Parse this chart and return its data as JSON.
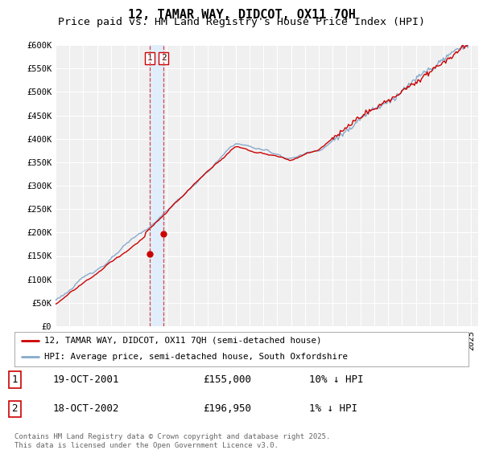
{
  "title": "12, TAMAR WAY, DIDCOT, OX11 7QH",
  "subtitle": "Price paid vs. HM Land Registry's House Price Index (HPI)",
  "ylabel_ticks": [
    "£0",
    "£50K",
    "£100K",
    "£150K",
    "£200K",
    "£250K",
    "£300K",
    "£350K",
    "£400K",
    "£450K",
    "£500K",
    "£550K",
    "£600K"
  ],
  "ylim": [
    0,
    600000
  ],
  "xlim_start": 1995.0,
  "xlim_end": 2025.5,
  "purchase1_x": 2001.79,
  "purchase1_price": 155000,
  "purchase1_label": "1",
  "purchase1_date": "19-OCT-2001",
  "purchase1_pct": "10% ↓ HPI",
  "purchase2_x": 2002.79,
  "purchase2_price": 196950,
  "purchase2_label": "2",
  "purchase2_date": "18-OCT-2002",
  "purchase2_pct": "1% ↓ HPI",
  "vline_color": "#dd4444",
  "vline_style": "--",
  "bg_color": "#ffffff",
  "plot_bg_color": "#f0f0f0",
  "grid_color": "#ffffff",
  "band_color": "#ddeeff",
  "line_color_red": "#cc0000",
  "line_color_blue": "#88aacc",
  "legend_label1": "12, TAMAR WAY, DIDCOT, OX11 7QH (semi-detached house)",
  "legend_label2": "HPI: Average price, semi-detached house, South Oxfordshire",
  "footer": "Contains HM Land Registry data © Crown copyright and database right 2025.\nThis data is licensed under the Open Government Licence v3.0.",
  "title_fontsize": 11,
  "subtitle_fontsize": 9.5,
  "tick_fontsize": 7.5
}
